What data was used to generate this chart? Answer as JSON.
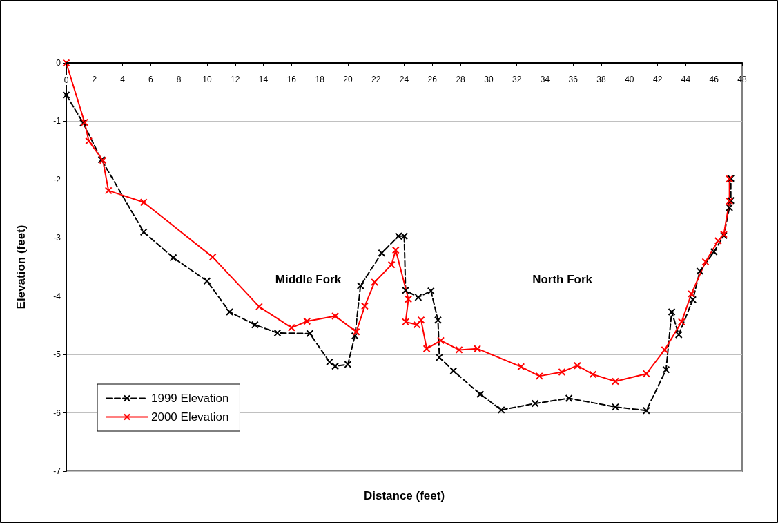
{
  "chart_data": {
    "type": "line",
    "xlabel": "Distance (feet)",
    "ylabel": "Elevation (feet)",
    "xlim": [
      0,
      48
    ],
    "xticks": [
      0,
      2,
      4,
      6,
      8,
      10,
      12,
      14,
      16,
      18,
      20,
      22,
      24,
      26,
      28,
      30,
      32,
      34,
      36,
      38,
      40,
      42,
      44,
      46,
      48
    ],
    "ylim": [
      -7,
      0
    ],
    "yticks": [
      -7,
      -6,
      -5,
      -4,
      -3,
      -2,
      -1,
      0
    ],
    "grid": "y",
    "legend": "bottom left",
    "marker": "cross",
    "annotations": [
      "Middle Fork",
      "North Fork"
    ],
    "series": [
      {
        "name": "1999 Elevation",
        "color": "#000000",
        "line_style": "dashed",
        "x": [
          0,
          1.2,
          2.5,
          5.5,
          7.6,
          10,
          11.6,
          13.4,
          15,
          17.3,
          18.7,
          19.1,
          20,
          20.5,
          20.9,
          22.4,
          23.6,
          24,
          24.1,
          25,
          25.9,
          26.4,
          26.5,
          27.5,
          29.4,
          30.9,
          33.3,
          35.7,
          39,
          41.2,
          42.6,
          43,
          43.5,
          44.5,
          45,
          46,
          46.7,
          47.1,
          47.2,
          47.2
        ],
        "values": [
          -0.55,
          -1.03,
          -1.66,
          -2.9,
          -3.34,
          -3.74,
          -4.27,
          -4.49,
          -4.63,
          -4.64,
          -5.13,
          -5.2,
          -5.17,
          -4.68,
          -3.82,
          -3.26,
          -2.97,
          -2.97,
          -3.9,
          -4.02,
          -3.91,
          -4.41,
          -5.05,
          -5.28,
          -5.68,
          -5.95,
          -5.84,
          -5.75,
          -5.9,
          -5.96,
          -5.26,
          -4.27,
          -4.66,
          -4.06,
          -3.57,
          -3.24,
          -2.96,
          -2.48,
          -2.36,
          -1.98
        ]
      },
      {
        "name": "2000 Elevation",
        "color": "#ff0000",
        "line_style": "solid",
        "x": [
          0,
          1.3,
          1.6,
          2.6,
          3,
          5.5,
          10.4,
          13.7,
          16,
          17.1,
          19.1,
          20.6,
          21.2,
          21.9,
          23.1,
          23.4,
          24.3,
          24.1,
          24.9,
          25.2,
          25.6,
          26.6,
          27.9,
          29.2,
          32.3,
          33.6,
          35.2,
          36.3,
          37.4,
          39,
          41.2,
          42.5,
          43.7,
          44.4,
          45.4,
          46.3,
          46.7,
          47.1,
          47.1
        ],
        "values": [
          0,
          -1.02,
          -1.34,
          -1.67,
          -2.19,
          -2.39,
          -3.33,
          -4.18,
          -4.54,
          -4.43,
          -4.34,
          -4.61,
          -4.17,
          -3.76,
          -3.46,
          -3.21,
          -4.05,
          -4.44,
          -4.49,
          -4.41,
          -4.9,
          -4.76,
          -4.92,
          -4.9,
          -5.21,
          -5.37,
          -5.3,
          -5.19,
          -5.34,
          -5.46,
          -5.33,
          -4.92,
          -4.44,
          -3.96,
          -3.41,
          -3.05,
          -2.94,
          -2.37,
          -1.99
        ]
      }
    ]
  }
}
